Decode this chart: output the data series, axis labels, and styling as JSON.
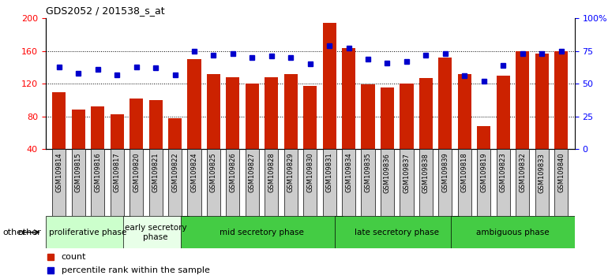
{
  "title": "GDS2052 / 201538_s_at",
  "samples": [
    "GSM109814",
    "GSM109815",
    "GSM109816",
    "GSM109817",
    "GSM109820",
    "GSM109821",
    "GSM109822",
    "GSM109824",
    "GSM109825",
    "GSM109826",
    "GSM109827",
    "GSM109828",
    "GSM109829",
    "GSM109830",
    "GSM109831",
    "GSM109834",
    "GSM109835",
    "GSM109836",
    "GSM109837",
    "GSM109838",
    "GSM109839",
    "GSM109818",
    "GSM109819",
    "GSM109823",
    "GSM109832",
    "GSM109833",
    "GSM109840"
  ],
  "counts": [
    110,
    88,
    92,
    83,
    102,
    100,
    78,
    150,
    132,
    128,
    120,
    128,
    132,
    117,
    194,
    163,
    119,
    115,
    120,
    127,
    152,
    132,
    68,
    130,
    160,
    157,
    160
  ],
  "percentiles": [
    63,
    58,
    61,
    57,
    63,
    62,
    57,
    75,
    72,
    73,
    70,
    71,
    70,
    65,
    79,
    77,
    69,
    66,
    67,
    72,
    73,
    56,
    52,
    64,
    73,
    73,
    75
  ],
  "bar_color": "#cc2200",
  "dot_color": "#0000cc",
  "left_ylim": [
    40,
    200
  ],
  "left_yticks": [
    40,
    80,
    120,
    160,
    200
  ],
  "right_ylim": [
    0,
    100
  ],
  "right_yticks": [
    0,
    25,
    50,
    75,
    100
  ],
  "right_yticklabels": [
    "0",
    "25",
    "50",
    "75",
    "100%"
  ],
  "grid_values": [
    80,
    120,
    160
  ],
  "phases": [
    {
      "label": "proliferative phase",
      "start": 0,
      "end": 4,
      "color": "#ccffcc"
    },
    {
      "label": "early secretory\nphase",
      "start": 4,
      "end": 7,
      "color": "#e8ffe8"
    },
    {
      "label": "mid secretory phase",
      "start": 7,
      "end": 15,
      "color": "#44cc44"
    },
    {
      "label": "late secretory phase",
      "start": 15,
      "end": 21,
      "color": "#44cc44"
    },
    {
      "label": "ambiguous phase",
      "start": 21,
      "end": 27,
      "color": "#44cc44"
    }
  ],
  "other_label": "other",
  "legend_count_label": "count",
  "legend_pct_label": "percentile rank within the sample",
  "tick_bg_color": "#cccccc",
  "plot_bg_color": "#ffffff",
  "border_color": "#000000"
}
